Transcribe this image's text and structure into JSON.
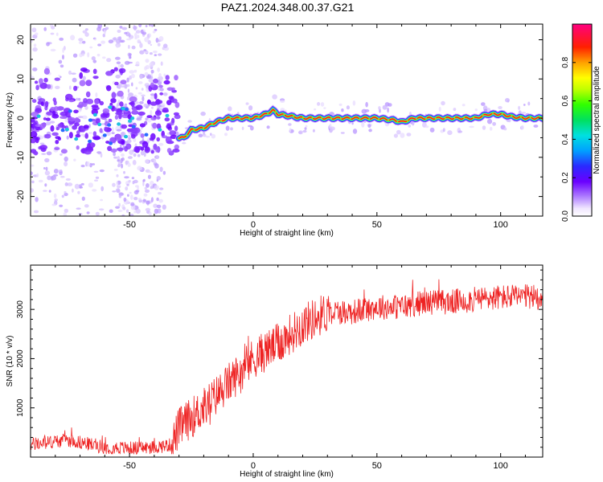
{
  "title": "PAZ1.2024.348.00.37.G21",
  "colors": {
    "snr_line": "#ee2222",
    "trace_core": "#ff1111",
    "background": "#ffffff"
  },
  "chart_data": [
    {
      "type": "heatmap",
      "xlabel": "Height of straight line (km)",
      "ylabel": "Frequency (Hz)",
      "xlim": [
        -90,
        117
      ],
      "ylim": [
        -25,
        24
      ],
      "x_ticks": [
        -50,
        0,
        50,
        100
      ],
      "y_ticks": [
        -20,
        -10,
        0,
        10,
        20
      ],
      "colorbar": {
        "label": "Normalized spectral amplitude",
        "range": [
          0,
          1
        ],
        "ticks": [
          0.0,
          0.2,
          0.4,
          0.6,
          0.8
        ],
        "colormap": "rainbow (purple-blue-cyan-green-yellow-red-pink)"
      },
      "series": [
        {
          "x": [
            -28,
            -25,
            -20,
            -15,
            -10,
            -5,
            0,
            5,
            8,
            10,
            15,
            20,
            30,
            40,
            50,
            57,
            60,
            65,
            70,
            80,
            90,
            95,
            100,
            105,
            110,
            117
          ],
          "y": [
            -5,
            -3,
            -2.5,
            -1,
            0,
            0,
            0,
            1,
            2,
            1,
            0.5,
            0,
            0,
            0,
            0,
            -0.5,
            -1,
            0,
            0,
            0,
            0,
            1,
            1,
            0.3,
            0,
            0
          ]
        }
      ]
    },
    {
      "type": "line",
      "xlabel": "Height of straight line (km)",
      "ylabel": "SNR (10 * v/v)",
      "xlim": [
        -90,
        117
      ],
      "ylim": [
        0,
        3900
      ],
      "x_ticks": [
        -50,
        0,
        50,
        100
      ],
      "y_ticks": [
        1000,
        2000,
        3000
      ],
      "series": [
        {
          "x": [
            -90,
            -75,
            -60,
            -50,
            -40,
            -33,
            -30,
            -20,
            -10,
            0,
            10,
            20,
            30,
            40,
            50,
            60,
            70,
            80,
            90,
            100,
            110,
            117
          ],
          "y": [
            250,
            350,
            200,
            180,
            200,
            250,
            600,
            1000,
            1500,
            2000,
            2300,
            2700,
            2950,
            2950,
            3050,
            3050,
            3150,
            3150,
            3200,
            3250,
            3250,
            3250
          ]
        }
      ]
    }
  ]
}
